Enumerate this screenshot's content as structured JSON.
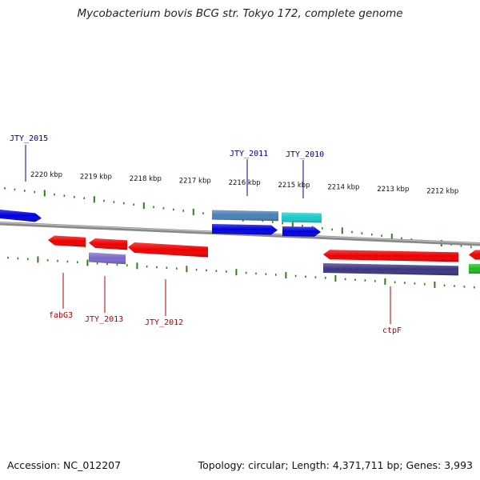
{
  "header": {
    "title": "Mycobacterium bovis BCG str. Tokyo 172, complete genome"
  },
  "footer": {
    "accession": "Accession: NC_012207",
    "summary": "Topology: circular; Length: 4,371,711 bp; Genes: 3,993"
  },
  "colors": {
    "backbone": "#8a8a8a",
    "tick": "#2e7d1e",
    "label_blue": "#00008b",
    "label_red": "#b00000"
  },
  "tick_marks": [
    {
      "label": "2220 kbp",
      "kbp": 2220
    },
    {
      "label": "2219 kbp",
      "kbp": 2219
    },
    {
      "label": "2218 kbp",
      "kbp": 2218
    },
    {
      "label": "2217 kbp",
      "kbp": 2217
    },
    {
      "label": "2216 kbp",
      "kbp": 2216
    },
    {
      "label": "2215 kbp",
      "kbp": 2215
    },
    {
      "label": "2214 kbp",
      "kbp": 2214
    },
    {
      "label": "2213 kbp",
      "kbp": 2213
    },
    {
      "label": "2212 kbp",
      "kbp": 2212
    }
  ],
  "features": [
    {
      "id": "blue-left",
      "strand": "forward",
      "color": "#0000dd"
    },
    {
      "id": "steel-2011",
      "strand": "forward",
      "color": "#4a7fb5"
    },
    {
      "id": "cyan-2010",
      "strand": "forward",
      "color": "#19c9c9"
    },
    {
      "id": "blue-2011",
      "strand": "forward",
      "color": "#0000dd"
    },
    {
      "id": "blue-2010",
      "strand": "forward",
      "color": "#0000dd"
    },
    {
      "id": "fabG3",
      "strand": "reverse",
      "color": "#ee0000"
    },
    {
      "id": "JTY_2013",
      "strand": "reverse",
      "color": "#ee0000"
    },
    {
      "id": "JTY_2012",
      "strand": "reverse",
      "color": "#ee0000"
    },
    {
      "id": "purple-2013",
      "strand": "reverse",
      "color": "#7b68c8"
    },
    {
      "id": "ctpF",
      "strand": "reverse",
      "color": "#ee0000"
    },
    {
      "id": "navy-ctpF",
      "strand": "reverse",
      "color": "#3a3580"
    },
    {
      "id": "red-right",
      "strand": "reverse",
      "color": "#ee0000"
    },
    {
      "id": "green-right",
      "strand": "reverse",
      "color": "#22bb22"
    }
  ],
  "gene_labels": [
    {
      "text": "JTY_2015",
      "color": "blue"
    },
    {
      "text": "JTY_2011",
      "color": "blue"
    },
    {
      "text": "JTY_2010",
      "color": "blue"
    },
    {
      "text": "fabG3",
      "color": "red"
    },
    {
      "text": "JTY_2013",
      "color": "red"
    },
    {
      "text": "JTY_2012",
      "color": "red"
    },
    {
      "text": "ctpF",
      "color": "red"
    }
  ]
}
